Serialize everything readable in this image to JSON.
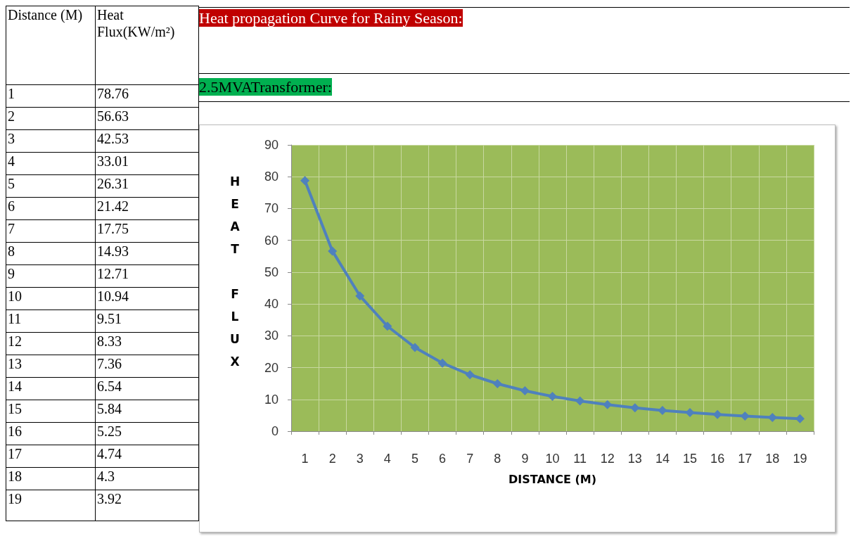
{
  "chart_data": {
    "type": "line",
    "title": "Heat propagation Curve for Rainy Season:",
    "subtitle": "2.5MVATransformer:",
    "xlabel": "DISTANCE (M)",
    "ylabel": "HEAT FLUX",
    "annotations": [
      "Distance (M)",
      "Heat Flux(KW/m²)"
    ],
    "categories": [
      "1",
      "2",
      "3",
      "4",
      "5",
      "6",
      "7",
      "8",
      "9",
      "10",
      "11",
      "12",
      "13",
      "14",
      "15",
      "16",
      "17",
      "18",
      "19"
    ],
    "series": [
      {
        "color": "#4f81bd",
        "values": [
          78.76,
          56.63,
          42.53,
          33.01,
          26.31,
          21.42,
          17.75,
          14.93,
          12.71,
          10.94,
          9.51,
          8.33,
          7.36,
          6.54,
          5.84,
          5.25,
          4.74,
          4.3,
          3.92
        ]
      }
    ],
    "value_labels": [
      "78.76",
      "56.63",
      "42.53",
      "33.01",
      "26.31",
      "21.42",
      "17.75",
      "14.93",
      "12.71",
      "10.94",
      "9.51",
      "8.33",
      "7.36",
      "6.54",
      "5.84",
      "5.25",
      "4.74",
      "4.3",
      "3.92"
    ],
    "ylim": [
      0,
      90
    ],
    "yticks": [
      0,
      10,
      20,
      30,
      40,
      50,
      60,
      70,
      80,
      90
    ],
    "grid": true,
    "marker": "diamond",
    "line_style": "solid"
  }
}
